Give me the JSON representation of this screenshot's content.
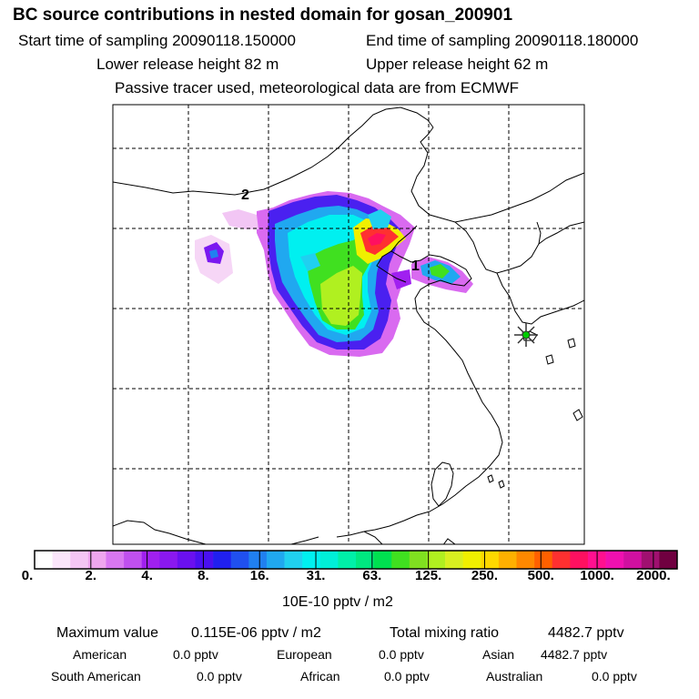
{
  "header": {
    "title": "BC  source contributions in nested domain for gosan_200901",
    "start_sampling": "Start time of sampling 20090118.150000",
    "end_sampling": "End time of sampling 20090118.180000",
    "lower_release": "Lower release height   82 m",
    "upper_release": "Upper release height   62 m",
    "note": "Passive tracer used, meteorological data are from ECMWF"
  },
  "map": {
    "labels": [
      "2",
      "1"
    ],
    "receptor_marker": "star-icon",
    "colors": {
      "coast": "#000000",
      "grid": "#000000",
      "receptor_fill": "#00cc00",
      "receptor_stroke": "#333333"
    }
  },
  "colorbar": {
    "labels": [
      "0.",
      "2.",
      "4.",
      "8.",
      "16.",
      "31.",
      "63.",
      "125.",
      "250.",
      "500.",
      "1000.",
      "2000."
    ],
    "units": "10E-10 pptv / m2",
    "colors": [
      "#ffffff",
      "#fbe6fb",
      "#f4c6f4",
      "#eea6ee",
      "#d877f1",
      "#c050ef",
      "#a020f0",
      "#8a18f0",
      "#6a10f0",
      "#4a10f0",
      "#2020f0",
      "#2050f0",
      "#2080f0",
      "#20a8f0",
      "#20d0f0",
      "#00f0f0",
      "#00f0d8",
      "#00f0a8",
      "#00e880",
      "#00e050",
      "#40e020",
      "#80e020",
      "#b0f020",
      "#d8f020",
      "#f0f000",
      "#ffd800",
      "#ffb000",
      "#ff8800",
      "#ff6000",
      "#ff3030",
      "#ff1060",
      "#ff1090",
      "#f010b0",
      "#d010a0",
      "#a01070",
      "#700040"
    ]
  },
  "summary": {
    "max_label": "Maximum value",
    "max_value": "0.115E-06 pptv / m2",
    "total_label": "Total mixing ratio",
    "total_value": "4482.7 pptv",
    "regions": [
      {
        "name": "American",
        "value": "0.0 pptv"
      },
      {
        "name": "European",
        "value": "0.0 pptv"
      },
      {
        "name": "Asian",
        "value": "4482.7 pptv"
      },
      {
        "name": "South American",
        "value": "0.0 pptv"
      },
      {
        "name": "African",
        "value": "0.0 pptv"
      },
      {
        "name": "Australian",
        "value": "0.0 pptv"
      }
    ]
  }
}
